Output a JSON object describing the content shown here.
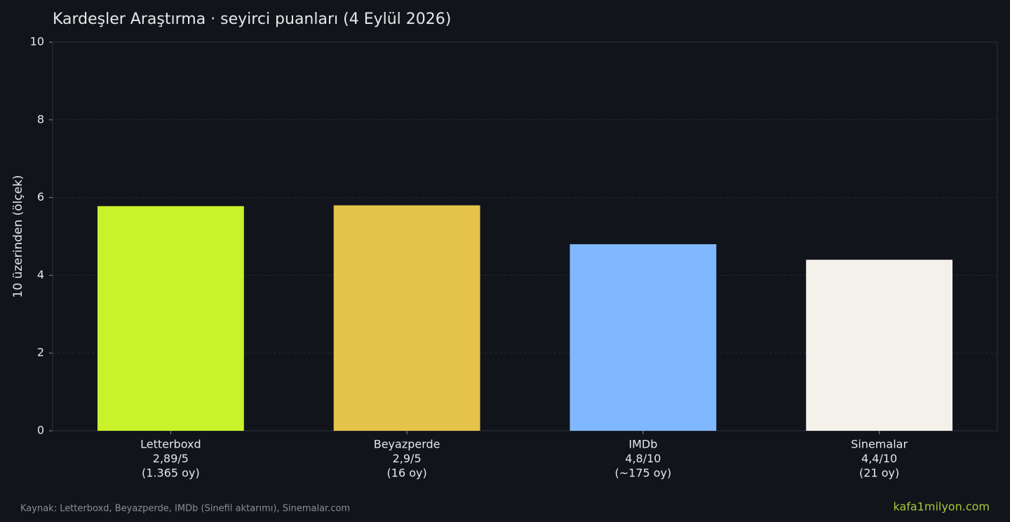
{
  "chart_data": {
    "type": "bar",
    "title": "Kardeşler Araştırma · seyirci puanları (4 Eylül 2026)",
    "y_label": "10 üzerinden (ölçek)",
    "categories": [
      [
        "Letterboxd",
        "2,89/5",
        "(1.365 oy)"
      ],
      [
        "Beyazperde",
        "2,9/5",
        "(16 oy)"
      ],
      [
        "IMDb",
        "4,8/10",
        "(~175 oy)"
      ],
      [
        "Sinemalar",
        "4,4/10",
        "(21 oy)"
      ]
    ],
    "values": [
      5.78,
      5.8,
      4.8,
      4.4
    ],
    "colors": [
      "#c8f22a",
      "#e6c34a",
      "#80b8ff",
      "#f4f1ea"
    ],
    "ylim": [
      0,
      10
    ],
    "yticks": [
      0,
      2,
      4,
      6,
      8,
      10
    ],
    "grid": true,
    "source": "Kaynak: Letterboxd, Beyazperde, IMDb (Sinefil aktarımı), Sinemalar.com",
    "watermark": "kafa1milyon.com"
  }
}
